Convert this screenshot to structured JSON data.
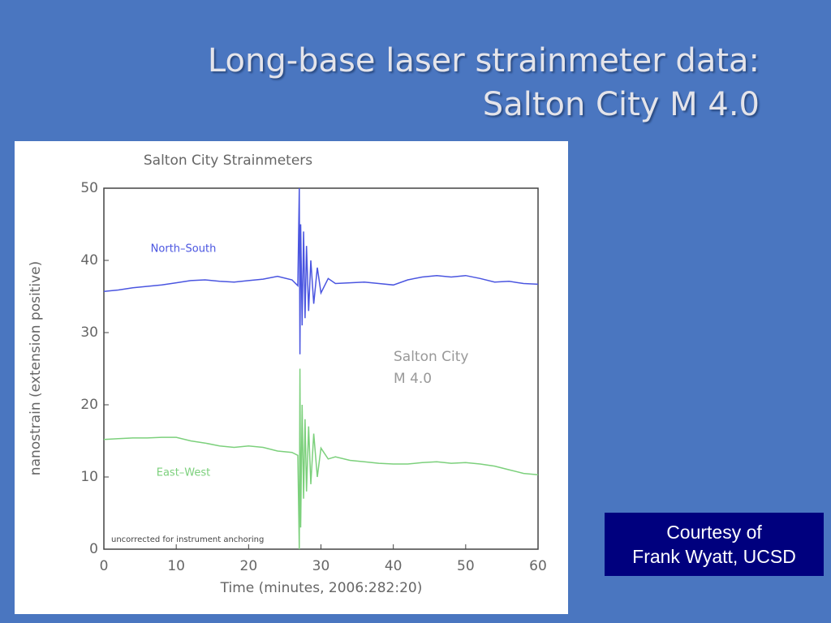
{
  "slide": {
    "title_lines": [
      "Long-base laser strainmeter data:",
      "Salton City M 4.0"
    ],
    "credit_lines": [
      "Courtesy of",
      "Frank Wyatt, UCSD"
    ]
  },
  "chart_data": {
    "type": "line",
    "title": "Salton City Strainmeters",
    "x_label": "Time (minutes, 2006:282:20)",
    "y_label": "nanostrain (extension positive)",
    "x": [
      0,
      2,
      4,
      6,
      8,
      10,
      12,
      14,
      16,
      18,
      20,
      22,
      24,
      26,
      26.8,
      27,
      27.1,
      27.2,
      27.4,
      27.6,
      27.8,
      28,
      28.3,
      28.6,
      29,
      29.5,
      30,
      31,
      32,
      34,
      36,
      38,
      40,
      42,
      44,
      46,
      48,
      50,
      52,
      54,
      56,
      58,
      60
    ],
    "series": [
      {
        "name": "North–South",
        "color": "#4a55e0",
        "values": [
          35.7,
          35.9,
          36.2,
          36.4,
          36.6,
          36.9,
          37.2,
          37.3,
          37.1,
          37.0,
          37.2,
          37.4,
          37.8,
          37.3,
          36.5,
          50,
          27,
          45,
          31,
          44,
          32,
          42,
          33,
          40,
          34,
          39,
          35.5,
          37.5,
          36.8,
          36.9,
          37.0,
          36.8,
          36.6,
          37.3,
          37.7,
          37.9,
          37.7,
          37.9,
          37.5,
          37.0,
          37.1,
          36.8,
          36.7
        ]
      },
      {
        "name": "East–West",
        "color": "#7cd07c",
        "values": [
          15.2,
          15.3,
          15.4,
          15.4,
          15.5,
          15.5,
          15.0,
          14.7,
          14.3,
          14.1,
          14.3,
          14.1,
          13.6,
          13.4,
          13.0,
          0,
          25,
          3,
          20,
          7,
          18,
          8,
          17,
          9,
          16,
          10,
          14,
          12.5,
          12.8,
          12.3,
          12.1,
          11.9,
          11.8,
          11.8,
          12.0,
          12.1,
          11.9,
          12.0,
          11.8,
          11.5,
          11.0,
          10.5,
          10.3
        ]
      }
    ],
    "annotations": [
      "Salton City",
      "M 4.0",
      "uncorrected for instrument anchoring"
    ],
    "xlim": [
      0,
      60
    ],
    "xticks": [
      0,
      10,
      20,
      30,
      40,
      50,
      60
    ],
    "ylim": [
      0,
      50
    ],
    "yticks": [
      0,
      10,
      20,
      30,
      40,
      50
    ],
    "grid": false
  }
}
